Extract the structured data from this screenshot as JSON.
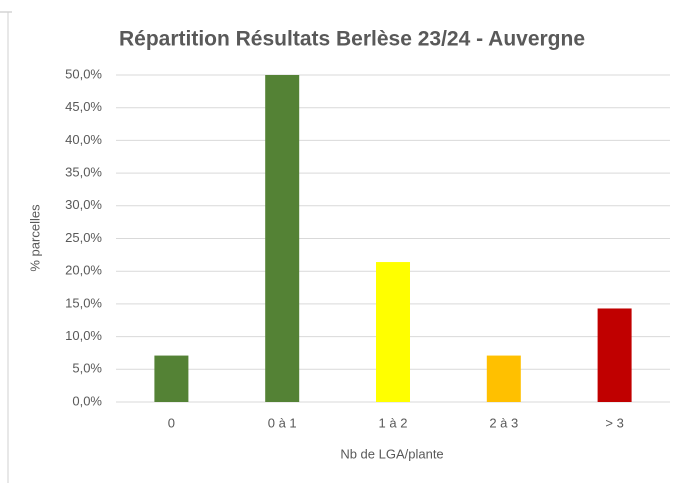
{
  "chart_data": {
    "type": "bar",
    "title": "Répartition Résultats Berlèse 23/24 - Auvergne",
    "x_label": "Nb de LGA/plante",
    "y_label": "% parcelles",
    "categories": [
      "0",
      "0 à 1",
      "1 à 2",
      "2 à 3",
      "> 3"
    ],
    "values": [
      7.1,
      50,
      21.4,
      7.1,
      14.3
    ],
    "colors": [
      "#548235",
      "#548235",
      "#ffff00",
      "#ffc000",
      "#c00000"
    ],
    "ylim": [
      0,
      50
    ],
    "yticks": [
      {
        "value": 0,
        "label": "0,0%"
      },
      {
        "value": 5,
        "label": "5,0%"
      },
      {
        "value": 10,
        "label": "10,0%"
      },
      {
        "value": 15,
        "label": "15,0%"
      },
      {
        "value": 20,
        "label": "20,0%"
      },
      {
        "value": 25,
        "label": "25,0%"
      },
      {
        "value": 30,
        "label": "30,0%"
      },
      {
        "value": 35,
        "label": "35,0%"
      },
      {
        "value": 40,
        "label": "40,0%"
      },
      {
        "value": 45,
        "label": "45,0%"
      },
      {
        "value": 50,
        "label": "50,0%"
      }
    ],
    "grid": true
  }
}
